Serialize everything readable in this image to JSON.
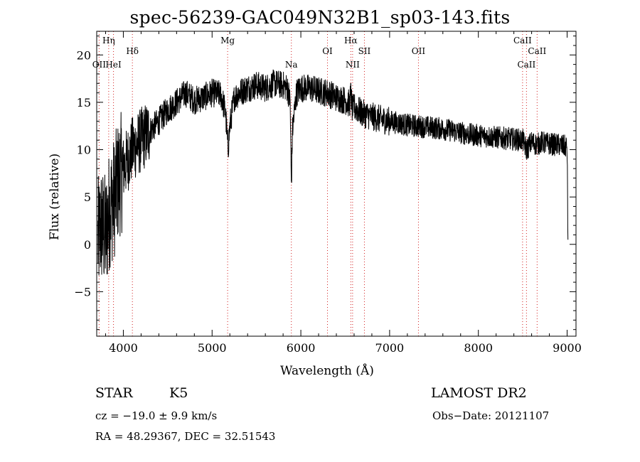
{
  "chart_data": {
    "type": "line",
    "title": "spec-56239-GAC049N32B1_sp03-143.fits",
    "xlabel": "Wavelength (Å)",
    "ylabel": "Flux (relative)",
    "xlim": [
      3700,
      9100
    ],
    "ylim": [
      -9.7,
      22.5
    ],
    "xticks": [
      4000,
      5000,
      6000,
      7000,
      8000,
      9000
    ],
    "yticks": [
      -5,
      0,
      5,
      10,
      15,
      20
    ],
    "grid": false,
    "series": [
      {
        "x": [
          3700,
          3750,
          3800,
          3850,
          3900,
          3950,
          4000,
          4050,
          4100,
          4150,
          4200,
          4300,
          4400,
          4500,
          4600,
          4700,
          4800,
          4900,
          5000,
          5100,
          5150,
          5180,
          5200,
          5250,
          5300,
          5400,
          5500,
          5600,
          5700,
          5800,
          5850,
          5880,
          5893,
          5905,
          5950,
          6000,
          6100,
          6200,
          6300,
          6400,
          6500,
          6550,
          6563,
          6580,
          6600,
          6700,
          6800,
          6900,
          7000,
          7100,
          7200,
          7300,
          7400,
          7500,
          7600,
          7700,
          7800,
          7900,
          8000,
          8100,
          8200,
          8300,
          8400,
          8500,
          8542,
          8600,
          8662,
          8700,
          8800,
          8900,
          9000,
          9010
        ],
        "y": [
          0,
          2,
          1,
          4,
          5,
          7,
          8,
          9,
          10,
          10.5,
          11,
          12,
          13,
          14.2,
          15,
          16,
          15.2,
          15.5,
          16,
          15.8,
          14,
          10,
          12.5,
          15.5,
          16,
          16.5,
          16.8,
          16.5,
          17,
          16.8,
          16.5,
          15,
          6,
          12,
          16,
          16.5,
          16.5,
          16.2,
          16,
          15.5,
          15.2,
          14.8,
          16,
          14.2,
          14.5,
          13.8,
          13.5,
          13.2,
          13,
          12.8,
          12.6,
          12.5,
          12.4,
          12.3,
          12.2,
          12,
          11.8,
          11.6,
          11.5,
          11.4,
          11.3,
          11.2,
          11.1,
          11,
          10,
          10.8,
          10.5,
          10.8,
          10.6,
          10.5,
          10.3,
          0
        ]
      }
    ],
    "lines": [
      {
        "label": "OII",
        "x": 3727
      },
      {
        "label": "Hη",
        "x": 3835
      },
      {
        "label": "HeI",
        "x": 3889
      },
      {
        "label": "Hδ",
        "x": 4102
      },
      {
        "label": "Mg",
        "x": 5175
      },
      {
        "label": "Na",
        "x": 5893
      },
      {
        "label": "OI",
        "x": 6300
      },
      {
        "label": "Hα",
        "x": 6563
      },
      {
        "label": "NII",
        "x": 6583
      },
      {
        "label": "SII",
        "x": 6716
      },
      {
        "label": "OII",
        "x": 7325
      },
      {
        "label": "CaII",
        "x": 8498
      },
      {
        "label": "CaII",
        "x": 8542
      },
      {
        "label": "CaII",
        "x": 8662
      }
    ]
  },
  "info": {
    "object_class": "STAR",
    "subclass": "K5",
    "survey": "LAMOST DR2",
    "redshift": "cz = −19.0 ± 9.9 km/s",
    "obs_date": "Obs−Date: 20121107",
    "coords": "RA =  48.29367, DEC =  32.51543"
  },
  "colors": {
    "spectrum": "#000000",
    "line_markers": "#d22020",
    "axes": "#000000"
  }
}
